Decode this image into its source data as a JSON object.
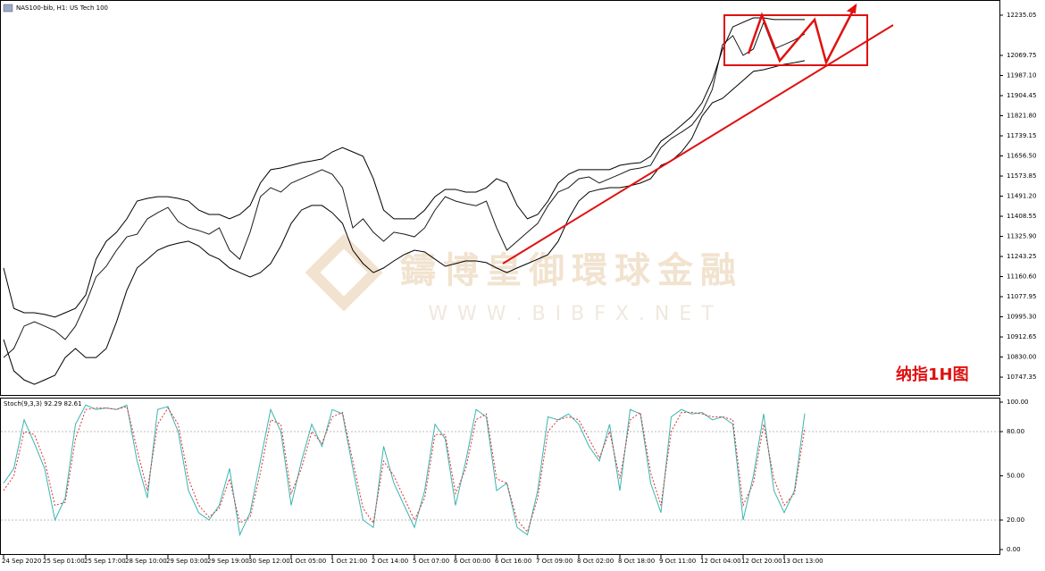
{
  "header": "NAS100-bib, H1: US Tech 100",
  "watermark": {
    "name": "鑄博皇御環球金融",
    "url": "W W W . B I B F X . N E T"
  },
  "annotation": "纳指1H图",
  "chart_data": [
    {
      "type": "line",
      "categories": [
        "24 Sep 2020",
        null,
        null,
        null,
        "25 Sep 01:00",
        null,
        null,
        null,
        "25 Sep 17:00",
        null,
        null,
        null,
        "28 Sep 10:00",
        null,
        null,
        null,
        "29 Sep 03:00",
        null,
        null,
        null,
        "29 Sep 19:00",
        null,
        null,
        null,
        "30 Sep 12:00",
        null,
        null,
        null,
        "1 Oct 05:00",
        null,
        null,
        null,
        "1 Oct 21:00",
        null,
        null,
        null,
        "2 Oct 14:00",
        null,
        null,
        null,
        "5 Oct 07:00",
        null,
        null,
        null,
        "6 Oct 00:00",
        null,
        null,
        null,
        "6 Oct 16:00",
        null,
        null,
        null,
        "7 Oct 09:00",
        null,
        null,
        null,
        "8 Oct 02:00",
        null,
        null,
        null,
        "8 Oct 18:00",
        null,
        null,
        null,
        "9 Oct 11:00",
        null,
        null,
        null,
        "12 Oct 04:00",
        null,
        null,
        null,
        "12 Oct 20:00",
        null,
        null,
        null,
        "13 Oct 13:00",
        null,
        null
      ],
      "series": [
        {
          "name": "Price",
          "color": "#1a1a1a",
          "values": [
            10828,
            10865,
            10957,
            10975,
            10957,
            10938,
            10902,
            10957,
            11049,
            11159,
            11203,
            11269,
            11324,
            11335,
            11398,
            11423,
            11445,
            11387,
            11361,
            11350,
            11335,
            11361,
            11269,
            11232,
            11343,
            11489,
            11526,
            11508,
            11545,
            11563,
            11581,
            11600,
            11581,
            11526,
            11361,
            11398,
            11343,
            11306,
            11343,
            11335,
            11324,
            11361,
            11434,
            11489,
            11471,
            11460,
            11452,
            11471,
            11361,
            11269,
            11306,
            11343,
            11379,
            11452,
            11508,
            11526,
            11563,
            11570,
            11545,
            11563,
            11581,
            11600,
            11607,
            11618,
            11691,
            11728,
            11754,
            11783,
            11838,
            11930,
            12114,
            12151,
            12070,
            12096,
            12206,
            12096,
            12114,
            12133,
            12158
          ]
        },
        {
          "name": "Upper band",
          "color": "#000000",
          "values": [
            11196,
            11030,
            11012,
            11012,
            11005,
            10994,
            11012,
            11030,
            11085,
            11232,
            11306,
            11343,
            11398,
            11471,
            11482,
            11489,
            11489,
            11482,
            11471,
            11434,
            11416,
            11416,
            11398,
            11416,
            11453,
            11545,
            11600,
            11607,
            11618,
            11629,
            11636,
            11644,
            11673,
            11691,
            11673,
            11655,
            11563,
            11434,
            11398,
            11398,
            11398,
            11434,
            11489,
            11519,
            11519,
            11508,
            11508,
            11526,
            11563,
            11545,
            11453,
            11398,
            11416,
            11471,
            11545,
            11581,
            11600,
            11600,
            11600,
            11600,
            11618,
            11625,
            11629,
            11655,
            11717,
            11747,
            11783,
            11820,
            11875,
            11967,
            12095,
            12187,
            12206,
            12224,
            12224,
            12217,
            12217,
            12217,
            12217
          ]
        },
        {
          "name": "Lower band",
          "color": "#000000",
          "values": [
            10902,
            10773,
            10736,
            10718,
            10736,
            10755,
            10828,
            10865,
            10828,
            10828,
            10865,
            10975,
            11104,
            11196,
            11232,
            11269,
            11287,
            11298,
            11306,
            11287,
            11251,
            11232,
            11196,
            11177,
            11159,
            11177,
            11214,
            11287,
            11379,
            11434,
            11453,
            11453,
            11423,
            11379,
            11269,
            11214,
            11177,
            11196,
            11225,
            11251,
            11269,
            11262,
            11232,
            11203,
            11214,
            11225,
            11225,
            11218,
            11196,
            11177,
            11196,
            11214,
            11232,
            11251,
            11306,
            11398,
            11471,
            11508,
            11519,
            11526,
            11526,
            11534,
            11545,
            11563,
            11618,
            11636,
            11673,
            11728,
            11820,
            11875,
            11893,
            11930,
            11967,
            12004,
            12011,
            12022,
            12033,
            12040,
            12048
          ]
        }
      ],
      "ylim": [
        10681.4,
        12279.1
      ],
      "yticks": [
        12235.05,
        12069.75,
        {
          "value": 11987.1,
          "label": "11987.10"
        },
        11904.45,
        {
          "value": 11821.8,
          "label": "11821.80"
        },
        11739.15,
        {
          "value": 11656.5,
          "label": "11656.50"
        },
        11573.85,
        {
          "value": 11491.2,
          "label": "11491.20"
        },
        11408.55,
        {
          "value": 11325.9,
          "label": "11325.90"
        },
        11243.25,
        {
          "value": 11160.6,
          "label": "11160.60"
        },
        11077.95,
        {
          "value": 10995.3,
          "label": "10995.30"
        },
        10912.65,
        {
          "value": 10830,
          "label": "10830.00"
        },
        10747.35
      ]
    },
    {
      "type": "line",
      "title": "Stoch(9,3,3) 92.29 82.61",
      "series": [
        {
          "name": "%K",
          "color": "#3ab5b0",
          "values": [
            45,
            55,
            88,
            72,
            55,
            20,
            35,
            85,
            98,
            95,
            96,
            95,
            98,
            60,
            35,
            95,
            97,
            80,
            40,
            25,
            20,
            30,
            55,
            10,
            25,
            60,
            95,
            80,
            30,
            60,
            85,
            70,
            95,
            92,
            55,
            20,
            15,
            70,
            45,
            30,
            15,
            40,
            85,
            75,
            30,
            60,
            95,
            90,
            40,
            45,
            15,
            10,
            40,
            90,
            88,
            92,
            85,
            70,
            60,
            85,
            40,
            95,
            92,
            45,
            25,
            90,
            95,
            92,
            93,
            88,
            90,
            85,
            20,
            50,
            92,
            40,
            25,
            40,
            92.29
          ]
        },
        {
          "name": "%D",
          "color": "#e03030",
          "dashed": true,
          "values": [
            40,
            50,
            80,
            78,
            60,
            30,
            32,
            75,
            95,
            96,
            96,
            95,
            97,
            68,
            40,
            85,
            96,
            85,
            48,
            30,
            22,
            28,
            48,
            18,
            22,
            52,
            88,
            85,
            38,
            55,
            80,
            72,
            90,
            93,
            60,
            28,
            18,
            60,
            50,
            35,
            20,
            35,
            78,
            78,
            38,
            55,
            88,
            92,
            48,
            45,
            20,
            12,
            35,
            80,
            88,
            90,
            88,
            75,
            62,
            80,
            48,
            88,
            93,
            52,
            30,
            80,
            93,
            93,
            92,
            90,
            90,
            88,
            30,
            45,
            85,
            48,
            30,
            38,
            82.61
          ]
        }
      ],
      "ylim": [
        0,
        100
      ],
      "yticks": [
        {
          "value": 100,
          "label": "100.00"
        },
        {
          "value": 80,
          "label": "80.00"
        },
        {
          "value": 50,
          "label": "50.00"
        },
        {
          "value": 20,
          "label": "20.00"
        },
        {
          "value": 0,
          "label": "0.00"
        }
      ],
      "levels": [
        80,
        20
      ]
    }
  ]
}
